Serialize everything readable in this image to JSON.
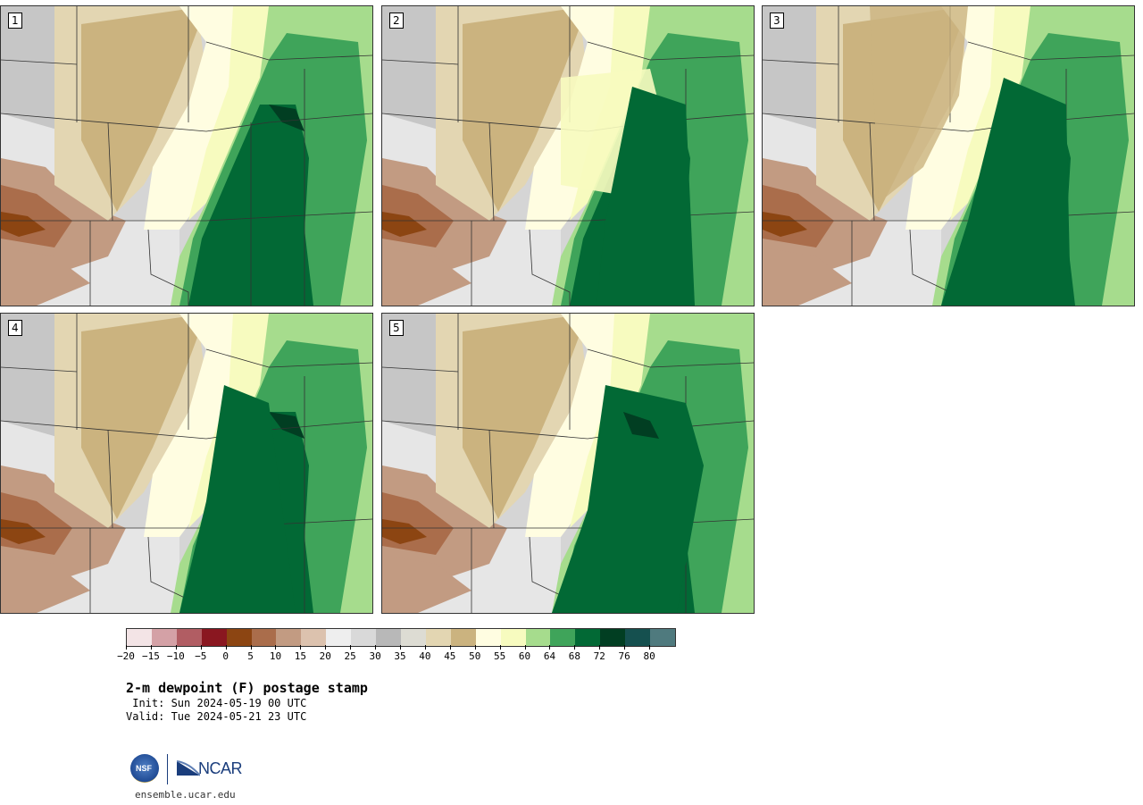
{
  "title": "2-m dewpoint (F) postage stamp",
  "init": " Init: Sun 2024-05-19 00 UTC",
  "valid": "Valid: Tue 2024-05-21 23 UTC",
  "site": "ensemble.ucar.edu",
  "logos": {
    "nsf": "NSF",
    "ncar": "NCAR"
  },
  "panels": [
    {
      "number": "1"
    },
    {
      "number": "2"
    },
    {
      "number": "3"
    },
    {
      "number": "4"
    },
    {
      "number": "5"
    }
  ],
  "colorbar": {
    "colors": [
      "#f3e4e6",
      "#d4a1a6",
      "#b15d63",
      "#8a1720",
      "#8c4512",
      "#aa6d4b",
      "#c29b82",
      "#dcc2ae",
      "#eeeeee",
      "#d9d9d9",
      "#b8b8b8",
      "#dddcd3",
      "#e3d6b2",
      "#cbb37f",
      "#fffde1",
      "#f7fbbf",
      "#a6dc8d",
      "#3fa45a",
      "#026935",
      "#013e22",
      "#15504f",
      "#4f7a7e"
    ],
    "tick_labels": [
      "-20",
      "-15",
      "-10",
      "-5",
      "0",
      "5",
      "10",
      "15",
      "20",
      "25",
      "30",
      "35",
      "40",
      "45",
      "50",
      "55",
      "60",
      "64",
      "68",
      "72",
      "76",
      "80"
    ]
  },
  "icons": [
    "nsf-logo-icon",
    "ncar-logo-icon"
  ]
}
